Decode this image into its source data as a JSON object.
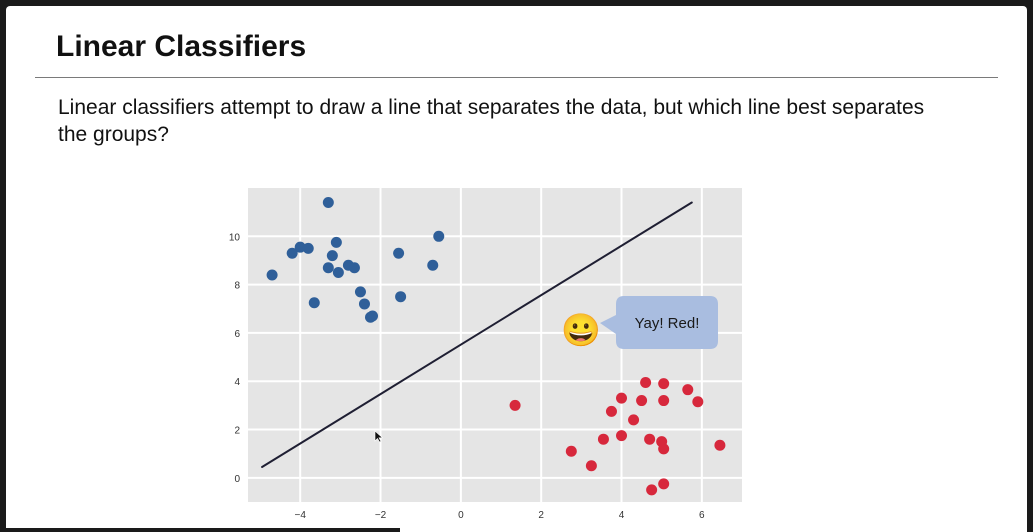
{
  "slide": {
    "title": "Linear Classifiers",
    "body": "Linear classifiers attempt to draw a line that separates the data, but which line best separates the groups?"
  },
  "callout": {
    "text": "Yay! Red!",
    "emoji": "😀",
    "bubble_color": "#a9bde0"
  },
  "chart_data": {
    "type": "scatter",
    "xlim": [
      -5.3,
      7.0
    ],
    "ylim": [
      -1.0,
      12.0
    ],
    "xticks": [
      -4,
      -2,
      0,
      2,
      4,
      6
    ],
    "yticks": [
      0,
      2,
      4,
      6,
      8,
      10
    ],
    "xtick_labels": [
      "−4",
      "−2",
      "0",
      "2",
      "4",
      "6"
    ],
    "ytick_labels": [
      "0",
      "2",
      "4",
      "6",
      "8",
      "10"
    ],
    "grid": true,
    "background": "#e5e5e5",
    "series": [
      {
        "color": "#2f5f99",
        "points": [
          [
            -3.3,
            11.4
          ],
          [
            -0.55,
            10.0
          ],
          [
            -3.1,
            9.75
          ],
          [
            -4.0,
            9.55
          ],
          [
            -3.8,
            9.5
          ],
          [
            -4.2,
            9.3
          ],
          [
            -3.2,
            9.2
          ],
          [
            -1.55,
            9.3
          ],
          [
            -2.8,
            8.8
          ],
          [
            -2.65,
            8.7
          ],
          [
            -3.3,
            8.7
          ],
          [
            -3.05,
            8.5
          ],
          [
            -0.7,
            8.8
          ],
          [
            -4.7,
            8.4
          ],
          [
            -2.5,
            7.7
          ],
          [
            -1.5,
            7.5
          ],
          [
            -2.4,
            7.2
          ],
          [
            -3.65,
            7.25
          ],
          [
            -2.25,
            6.65
          ],
          [
            -2.2,
            6.7
          ]
        ]
      },
      {
        "color": "#d7283c",
        "points": [
          [
            1.35,
            3.0
          ],
          [
            4.6,
            3.95
          ],
          [
            5.05,
            3.9
          ],
          [
            5.65,
            3.65
          ],
          [
            4.0,
            3.3
          ],
          [
            4.5,
            3.2
          ],
          [
            5.05,
            3.2
          ],
          [
            5.9,
            3.15
          ],
          [
            3.75,
            2.75
          ],
          [
            4.3,
            2.4
          ],
          [
            4.0,
            1.75
          ],
          [
            3.55,
            1.6
          ],
          [
            4.7,
            1.6
          ],
          [
            5.0,
            1.5
          ],
          [
            2.75,
            1.1
          ],
          [
            5.05,
            1.2
          ],
          [
            6.45,
            1.35
          ],
          [
            3.25,
            0.5
          ],
          [
            5.05,
            -0.25
          ],
          [
            4.75,
            -0.5
          ]
        ]
      }
    ],
    "line": {
      "color": "#1f1f33",
      "x": [
        -4.95,
        5.75
      ],
      "y": [
        0.45,
        11.4
      ]
    }
  }
}
